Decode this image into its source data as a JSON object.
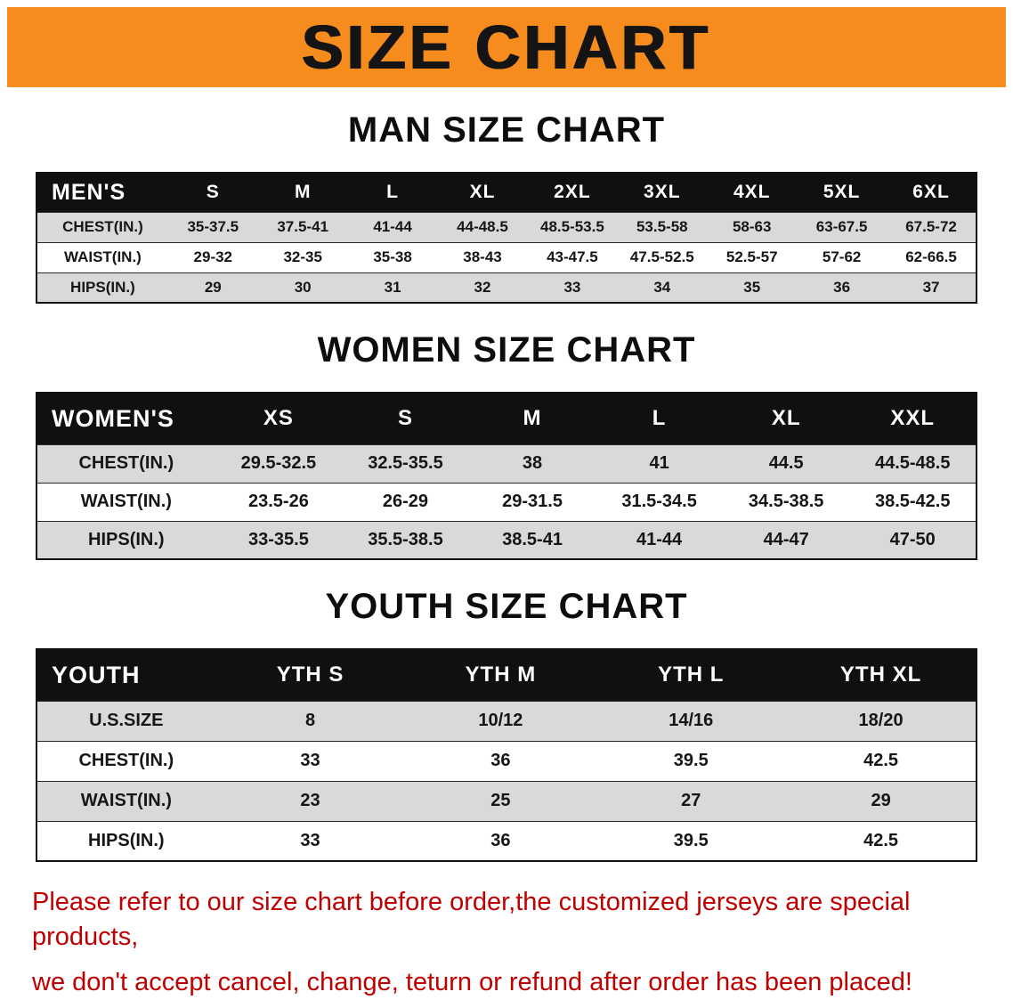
{
  "banner": {
    "title": "SIZE CHART",
    "bg_color": "#f68b1e"
  },
  "sections": [
    {
      "heading": "MAN SIZE CHART",
      "table": {
        "header_label": "MEN'S",
        "columns": [
          "S",
          "M",
          "L",
          "XL",
          "2XL",
          "3XL",
          "4XL",
          "5XL",
          "6XL"
        ],
        "rows": [
          {
            "label": "CHEST(IN.)",
            "values": [
              "35-37.5",
              "37.5-41",
              "41-44",
              "44-48.5",
              "48.5-53.5",
              "53.5-58",
              "58-63",
              "63-67.5",
              "67.5-72"
            ]
          },
          {
            "label": "WAIST(IN.)",
            "values": [
              "29-32",
              "32-35",
              "35-38",
              "38-43",
              "43-47.5",
              "47.5-52.5",
              "52.5-57",
              "57-62",
              "62-66.5"
            ]
          },
          {
            "label": "HIPS(IN.)",
            "values": [
              "29",
              "30",
              "31",
              "32",
              "33",
              "34",
              "35",
              "36",
              "37"
            ]
          }
        ]
      }
    },
    {
      "heading": "WOMEN SIZE CHART",
      "table": {
        "header_label": "WOMEN'S",
        "columns": [
          "XS",
          "S",
          "M",
          "L",
          "XL",
          "XXL"
        ],
        "rows": [
          {
            "label": "CHEST(IN.)",
            "values": [
              "29.5-32.5",
              "32.5-35.5",
              "38",
              "41",
              "44.5",
              "44.5-48.5"
            ]
          },
          {
            "label": "WAIST(IN.)",
            "values": [
              "23.5-26",
              "26-29",
              "29-31.5",
              "31.5-34.5",
              "34.5-38.5",
              "38.5-42.5"
            ]
          },
          {
            "label": "HIPS(IN.)",
            "values": [
              "33-35.5",
              "35.5-38.5",
              "38.5-41",
              "41-44",
              "44-47",
              "47-50"
            ]
          }
        ]
      }
    },
    {
      "heading": "YOUTH SIZE CHART",
      "table": {
        "header_label": "YOUTH",
        "columns": [
          "YTH S",
          "YTH M",
          "YTH L",
          "YTH XL"
        ],
        "rows": [
          {
            "label": "U.S.SIZE",
            "values": [
              "8",
              "10/12",
              "14/16",
              "18/20"
            ]
          },
          {
            "label": "CHEST(IN.)",
            "values": [
              "33",
              "36",
              "39.5",
              "42.5"
            ]
          },
          {
            "label": "WAIST(IN.)",
            "values": [
              "23",
              "25",
              "27",
              "29"
            ]
          },
          {
            "label": "HIPS(IN.)",
            "values": [
              "33",
              "36",
              "39.5",
              "42.5"
            ]
          }
        ]
      }
    }
  ],
  "footer": {
    "line1": "Please refer to our size chart before order,the customized jerseys are special products,",
    "line2": "we don't accept cancel, change, teturn or refund after order has been placed!",
    "text_color": "#c00000"
  }
}
